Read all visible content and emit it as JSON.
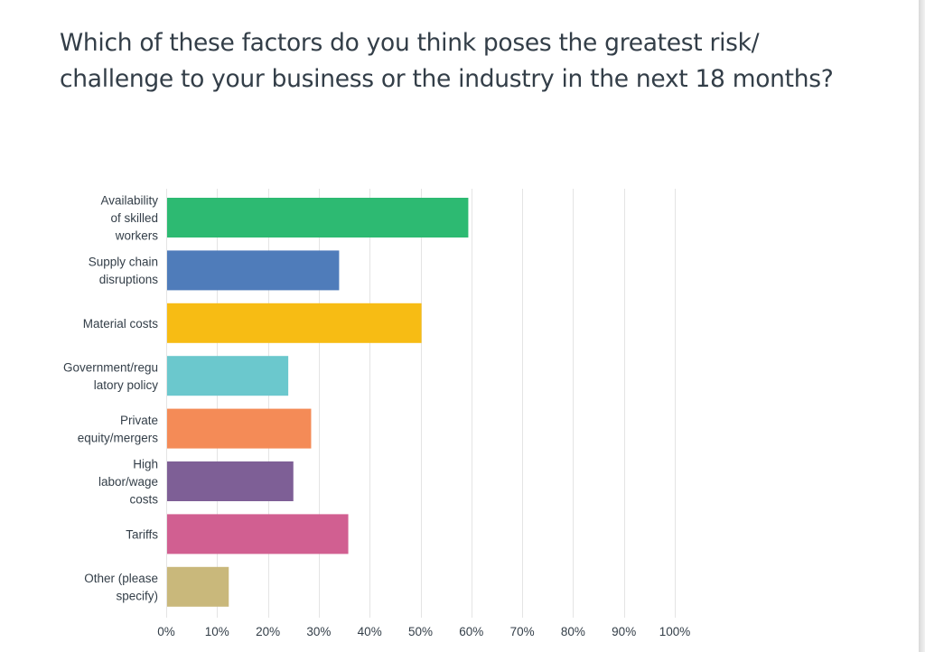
{
  "chart_data": {
    "type": "bar",
    "orientation": "horizontal",
    "title_lines": [
      "Which of these factors do you think poses the greatest risk/",
      "challenge to your business or the industry in the next 18 months?"
    ],
    "categories": [
      [
        "Availability",
        "of skilled",
        "workers"
      ],
      [
        "Supply chain",
        "disruptions"
      ],
      [
        "Material costs"
      ],
      [
        "Government/regu",
        "latory policy"
      ],
      [
        "Private",
        "equity/mergers"
      ],
      [
        "High",
        "labor/wage",
        "costs"
      ],
      [
        "Tariffs"
      ],
      [
        "Other (please",
        "specify)"
      ]
    ],
    "values": [
      59.4,
      34.0,
      50.2,
      24.0,
      28.5,
      25.0,
      35.8,
      12.3
    ],
    "colors": [
      "#2dba72",
      "#4f7cba",
      "#f7bc14",
      "#6bc8cd",
      "#f48b57",
      "#7e5f96",
      "#d15f91",
      "#c9b87b"
    ],
    "xlim": [
      0,
      100
    ],
    "x_ticks": [
      "0%",
      "10%",
      "20%",
      "30%",
      "40%",
      "50%",
      "60%",
      "70%",
      "80%",
      "90%",
      "100%"
    ],
    "grid": true,
    "legend": "none"
  }
}
